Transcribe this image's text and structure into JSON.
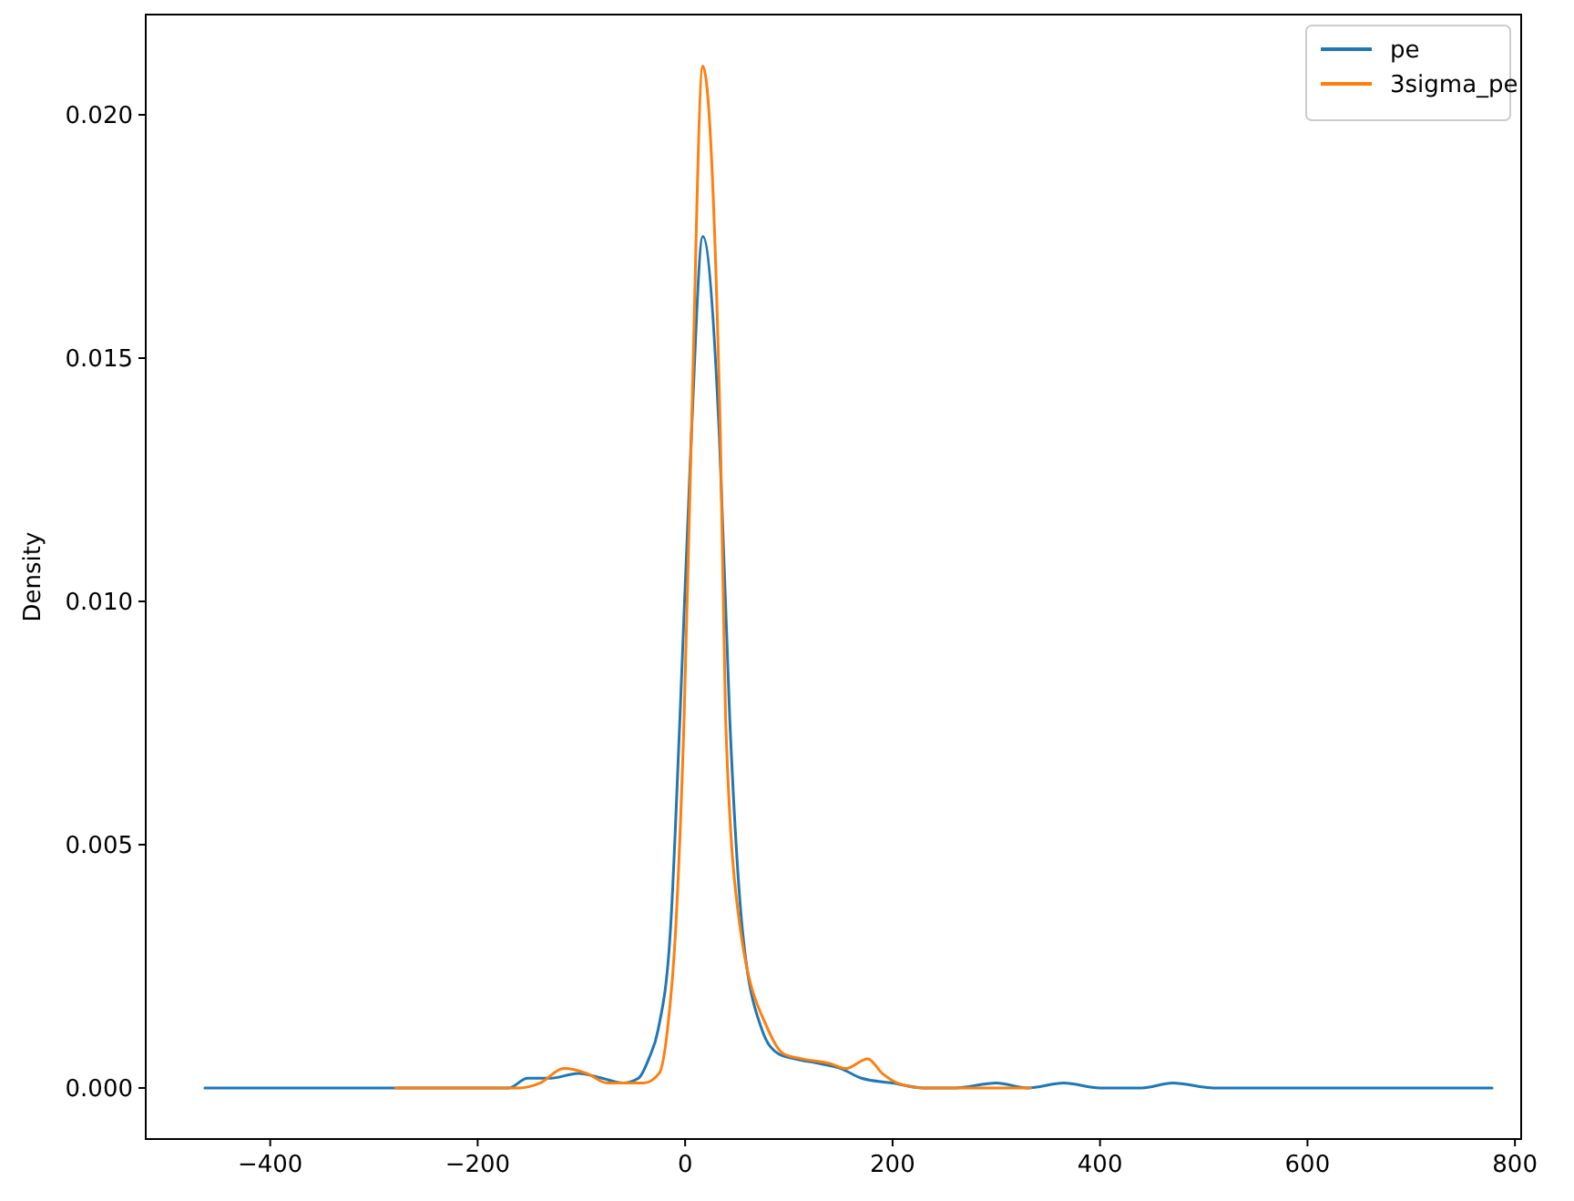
{
  "chart_data": {
    "type": "line",
    "ylabel": "Density",
    "legend": "top right",
    "grid": false,
    "xlim": [
      -520,
      806
    ],
    "ylim": [
      -0.00105,
      0.02206
    ],
    "xticks": [
      {
        "value": -400,
        "label": "−400"
      },
      {
        "value": -200,
        "label": "−200"
      },
      0,
      200,
      400,
      600,
      800
    ],
    "yticks": [
      {
        "value": 0,
        "label": "0.000"
      },
      {
        "value": 0.005,
        "label": "0.005"
      },
      {
        "value": 0.01,
        "label": "0.010"
      },
      {
        "value": 0.015,
        "label": "0.015"
      },
      {
        "value": 0.02,
        "label": "0.020"
      }
    ],
    "series": [
      {
        "name": "pe",
        "color": "#1f77b4",
        "x": [
          -463,
          -200,
          -170,
          -152,
          -130,
          -103,
          -80,
          -60,
          -45,
          -35,
          -26,
          -14,
          -5,
          6,
          17,
          33,
          43,
          55,
          74,
          90,
          105,
          130,
          150,
          170,
          200,
          230,
          260,
          300,
          330,
          365,
          400,
          440,
          470,
          510,
          778
        ],
        "values": [
          0,
          0,
          0,
          0.0002,
          0.0002,
          0.0003,
          0.0002,
          0.0001,
          0.0002,
          0.0006,
          0.0012,
          0.0033,
          0.0076,
          0.0134,
          0.0175,
          0.0134,
          0.0076,
          0.0033,
          0.0012,
          0.0007,
          0.0006,
          0.0005,
          0.0004,
          0.0002,
          0.0001,
          0,
          0,
          0.0001,
          0,
          0.0001,
          0,
          0,
          0.0001,
          0,
          0
        ]
      },
      {
        "name": "3sigma_pe",
        "color": "#ff7f0e",
        "x": [
          -279,
          -160,
          -140,
          -117,
          -95,
          -75,
          -40,
          -25,
          -17,
          -9,
          -1,
          6,
          17,
          34,
          39,
          53,
          80,
          95,
          112,
          140,
          155,
          176,
          190,
          205,
          230,
          333
        ],
        "values": [
          0,
          0,
          0.0001,
          0.0004,
          0.0003,
          0.0001,
          0.0001,
          0.0003,
          0.0012,
          0.0033,
          0.0076,
          0.0134,
          0.021,
          0.0134,
          0.0076,
          0.0033,
          0.0012,
          0.0007,
          0.0006,
          0.0005,
          0.0004,
          0.0006,
          0.0003,
          0.0001,
          0,
          0
        ]
      }
    ]
  }
}
